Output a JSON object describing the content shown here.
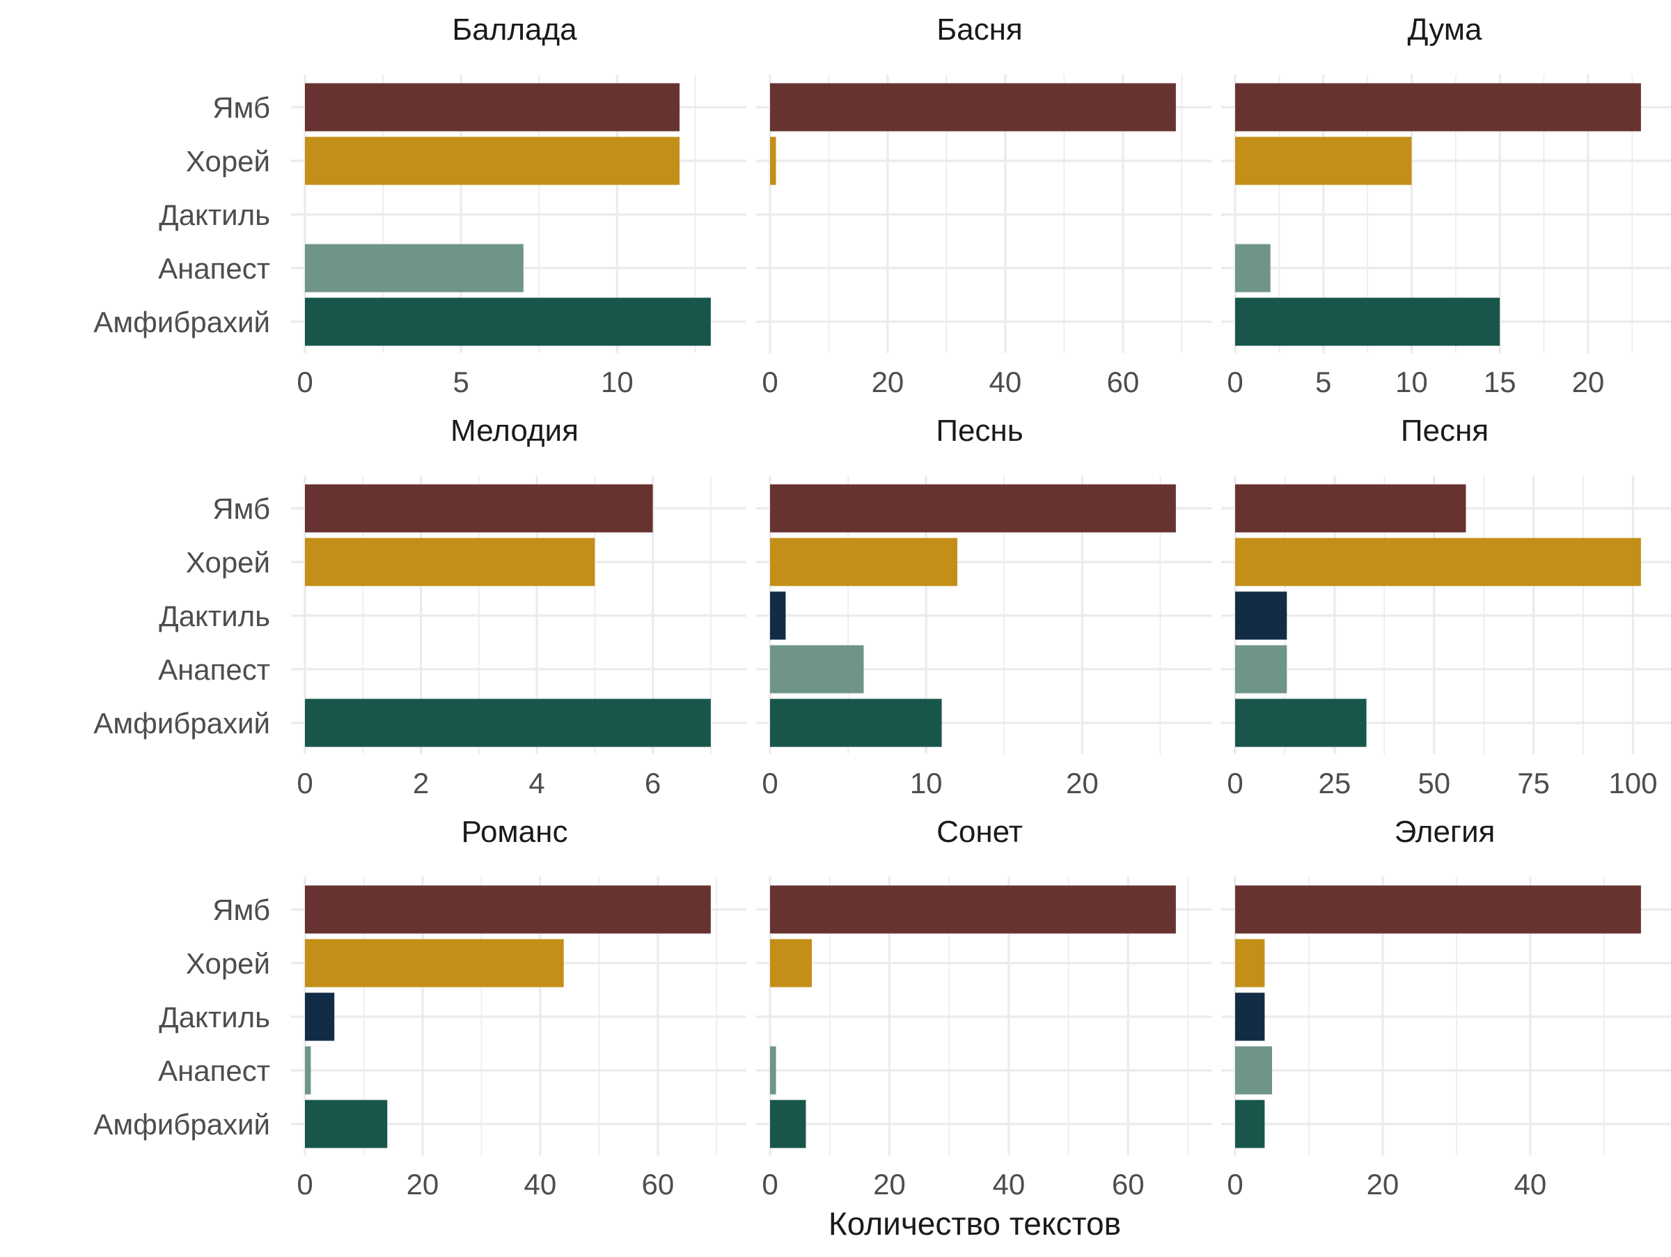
{
  "chart_data": {
    "type": "bar",
    "orientation": "horizontal",
    "facet_layout": "3x3",
    "scales": "free_x",
    "xlabel": "Количество текстов",
    "ylabel": "",
    "grid": true,
    "legend": "none",
    "categories": [
      "Ямб",
      "Хорей",
      "Дактиль",
      "Анапест",
      "Амфибрахий"
    ],
    "category_colors": {
      "Ямб": "#673330",
      "Хорей": "#c38f18",
      "Дактиль": "#132c45",
      "Анапест": "#6f958a",
      "Амфибрахий": "#18564b"
    },
    "panels": [
      {
        "title": "Баллада",
        "values": [
          12,
          12,
          0,
          7,
          13
        ],
        "xticks": [
          0,
          5,
          10
        ],
        "xlim": [
          0,
          13.65
        ]
      },
      {
        "title": "Басня",
        "values": [
          69,
          1,
          0,
          0,
          0
        ],
        "xticks": [
          0,
          20,
          40,
          60
        ],
        "xlim": [
          0,
          72.45
        ]
      },
      {
        "title": "Дума",
        "values": [
          23,
          10,
          0,
          2,
          15
        ],
        "xticks": [
          0,
          5,
          10,
          15,
          20
        ],
        "xlim": [
          0,
          24.15
        ]
      },
      {
        "title": "Мелодия",
        "values": [
          6,
          5,
          0,
          0,
          7
        ],
        "xticks": [
          0,
          2,
          4,
          6
        ],
        "xlim": [
          0,
          7.35
        ]
      },
      {
        "title": "Песнь",
        "values": [
          26,
          12,
          1,
          6,
          11
        ],
        "xticks": [
          0,
          10,
          20
        ],
        "xlim": [
          0,
          27.3
        ]
      },
      {
        "title": "Песня",
        "values": [
          58,
          102,
          13,
          13,
          33
        ],
        "xticks": [
          0,
          25,
          50,
          75,
          100
        ],
        "xlim": [
          0,
          107.1
        ]
      },
      {
        "title": "Романс",
        "values": [
          69,
          44,
          5,
          1,
          14
        ],
        "xticks": [
          0,
          20,
          40,
          60
        ],
        "xlim": [
          0,
          72.45
        ]
      },
      {
        "title": "Сонет",
        "values": [
          68,
          7,
          0,
          1,
          6
        ],
        "xticks": [
          0,
          20,
          40,
          60
        ],
        "xlim": [
          0,
          71.4
        ]
      },
      {
        "title": "Элегия",
        "values": [
          55,
          4,
          4,
          5,
          4
        ],
        "xticks": [
          0,
          20,
          40
        ],
        "xlim": [
          0,
          57.75
        ]
      }
    ]
  }
}
